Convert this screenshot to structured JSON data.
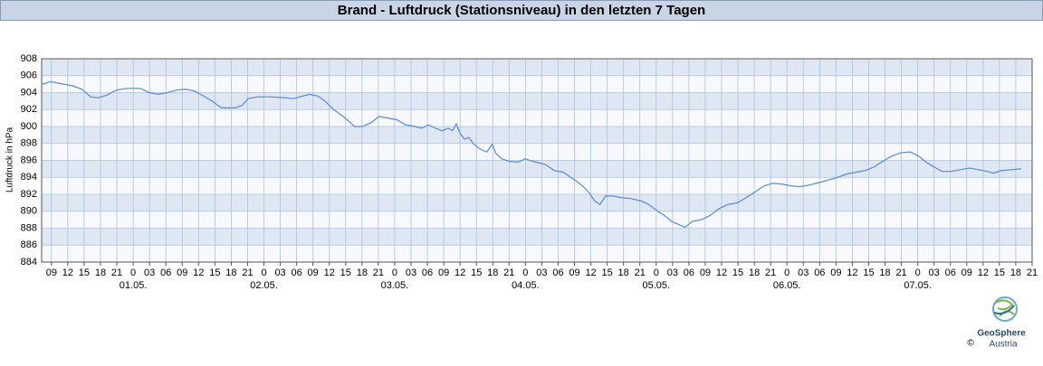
{
  "chart_data": {
    "type": "line",
    "title": "Brand - Luftdruck (Stationsniveau) in den letzten 7 Tagen",
    "y_label": "Luftdruck in hPa",
    "xlim": [
      -16.8,
      165
    ],
    "ylim": [
      884,
      908
    ],
    "yticks": [
      884,
      886,
      888,
      890,
      892,
      894,
      896,
      898,
      900,
      902,
      904,
      906,
      908
    ],
    "xticks": [
      {
        "value": -15,
        "label": "09"
      },
      {
        "value": -12,
        "label": "12"
      },
      {
        "value": -9,
        "label": "15"
      },
      {
        "value": -6,
        "label": "18"
      },
      {
        "value": -3,
        "label": "21"
      },
      {
        "value": 0,
        "label": "0"
      },
      {
        "value": 3,
        "label": "03"
      },
      {
        "value": 6,
        "label": "06"
      },
      {
        "value": 9,
        "label": "09"
      },
      {
        "value": 12,
        "label": "12"
      },
      {
        "value": 15,
        "label": "15"
      },
      {
        "value": 18,
        "label": "18"
      },
      {
        "value": 21,
        "label": "21"
      },
      {
        "value": 24,
        "label": "0"
      },
      {
        "value": 27,
        "label": "03"
      },
      {
        "value": 30,
        "label": "06"
      },
      {
        "value": 33,
        "label": "09"
      },
      {
        "value": 36,
        "label": "12"
      },
      {
        "value": 39,
        "label": "15"
      },
      {
        "value": 42,
        "label": "18"
      },
      {
        "value": 45,
        "label": "21"
      },
      {
        "value": 48,
        "label": "0"
      },
      {
        "value": 51,
        "label": "03"
      },
      {
        "value": 54,
        "label": "06"
      },
      {
        "value": 57,
        "label": "09"
      },
      {
        "value": 60,
        "label": "12"
      },
      {
        "value": 63,
        "label": "15"
      },
      {
        "value": 66,
        "label": "18"
      },
      {
        "value": 69,
        "label": "21"
      },
      {
        "value": 72,
        "label": "0"
      },
      {
        "value": 75,
        "label": "03"
      },
      {
        "value": 78,
        "label": "06"
      },
      {
        "value": 81,
        "label": "09"
      },
      {
        "value": 84,
        "label": "12"
      },
      {
        "value": 87,
        "label": "15"
      },
      {
        "value": 90,
        "label": "18"
      },
      {
        "value": 93,
        "label": "21"
      },
      {
        "value": 96,
        "label": "0"
      },
      {
        "value": 99,
        "label": "03"
      },
      {
        "value": 102,
        "label": "06"
      },
      {
        "value": 105,
        "label": "09"
      },
      {
        "value": 108,
        "label": "12"
      },
      {
        "value": 111,
        "label": "15"
      },
      {
        "value": 114,
        "label": "18"
      },
      {
        "value": 117,
        "label": "21"
      },
      {
        "value": 120,
        "label": "0"
      },
      {
        "value": 123,
        "label": "03"
      },
      {
        "value": 126,
        "label": "06"
      },
      {
        "value": 129,
        "label": "09"
      },
      {
        "value": 132,
        "label": "12"
      },
      {
        "value": 135,
        "label": "15"
      },
      {
        "value": 138,
        "label": "18"
      },
      {
        "value": 141,
        "label": "21"
      },
      {
        "value": 144,
        "label": "0"
      },
      {
        "value": 147,
        "label": "03"
      },
      {
        "value": 150,
        "label": "06"
      },
      {
        "value": 153,
        "label": "09"
      },
      {
        "value": 156,
        "label": "12"
      },
      {
        "value": 159,
        "label": "15"
      },
      {
        "value": 162,
        "label": "18"
      },
      {
        "value": 165,
        "label": "21"
      }
    ],
    "date_labels": [
      {
        "value": 0,
        "label": "01.05."
      },
      {
        "value": 24,
        "label": "02.05."
      },
      {
        "value": 48,
        "label": "03.05."
      },
      {
        "value": 72,
        "label": "04.05."
      },
      {
        "value": 96,
        "label": "05.05."
      },
      {
        "value": 120,
        "label": "06.05."
      },
      {
        "value": 144,
        "label": "07.05."
      }
    ],
    "grid": true,
    "series": [
      {
        "color": "#5b8ad6",
        "x": [
          -16.7,
          -15.2,
          -14.4,
          -12.7,
          -11.1,
          -9.4,
          -7.8,
          -6.4,
          -4.8,
          -3.1,
          -1.2,
          1.3,
          3.0,
          4.6,
          6.3,
          7.9,
          9.6,
          11.2,
          12.9,
          14.5,
          16.2,
          18.7,
          20.0,
          21.1,
          22.8,
          25.3,
          27.8,
          29.4,
          31.1,
          32.4,
          33.9,
          35.2,
          36.8,
          38.5,
          39.8,
          40.6,
          42.1,
          43.8,
          45.1,
          46.7,
          48.4,
          50.0,
          51.7,
          53.0,
          54.2,
          55.5,
          56.7,
          57.8,
          58.6,
          59.3,
          60.0,
          60.8,
          61.6,
          62.4,
          63.3,
          64.1,
          64.9,
          65.9,
          66.6,
          67.6,
          69.0,
          70.7,
          72.0,
          72.8,
          74.0,
          75.7,
          77.3,
          79.0,
          80.3,
          81.5,
          82.8,
          83.9,
          84.7,
          85.7,
          86.7,
          88.0,
          89.7,
          91.3,
          93.3,
          94.6,
          96.3,
          97.5,
          98.8,
          99.9,
          101.3,
          102.6,
          104.2,
          105.9,
          107.5,
          109.2,
          110.9,
          112.5,
          114.2,
          115.8,
          117.4,
          119.1,
          120.7,
          122.4,
          124.1,
          126.0,
          127.7,
          129.3,
          131.0,
          132.6,
          134.3,
          135.9,
          137.6,
          139.2,
          140.9,
          142.6,
          144.2,
          145.5,
          146.8,
          148.5,
          150.1,
          151.8,
          153.5,
          155.1,
          156.8,
          157.9,
          159.3,
          161.1,
          163.0
        ],
        "values": [
          905.0,
          905.3,
          905.2,
          905.0,
          904.8,
          904.4,
          903.5,
          903.4,
          903.7,
          904.3,
          904.5,
          904.5,
          904.0,
          903.8,
          904.0,
          904.3,
          904.4,
          904.2,
          903.6,
          903.0,
          902.2,
          902.2,
          902.5,
          903.3,
          903.5,
          903.5,
          903.4,
          903.3,
          903.6,
          903.8,
          903.6,
          903.0,
          902.0,
          901.2,
          900.5,
          900.0,
          900.0,
          900.5,
          901.2,
          901.0,
          900.8,
          900.2,
          900.0,
          899.8,
          900.2,
          899.8,
          899.5,
          899.8,
          899.5,
          900.3,
          899.2,
          898.5,
          898.7,
          898.0,
          897.5,
          897.2,
          897.0,
          897.9,
          896.8,
          896.2,
          895.9,
          895.8,
          896.2,
          896.0,
          895.8,
          895.5,
          894.8,
          894.6,
          894.0,
          893.5,
          892.8,
          892.0,
          891.2,
          890.8,
          891.8,
          891.8,
          891.6,
          891.5,
          891.2,
          890.8,
          890.0,
          889.5,
          888.8,
          888.5,
          888.1,
          888.8,
          889.0,
          889.5,
          890.3,
          890.8,
          891.0,
          891.6,
          892.3,
          893.0,
          893.3,
          893.2,
          893.0,
          892.9,
          893.1,
          893.4,
          893.7,
          894.0,
          894.4,
          894.6,
          894.8,
          895.2,
          895.9,
          896.5,
          896.9,
          897.0,
          896.5,
          895.8,
          895.3,
          894.7,
          894.7,
          894.9,
          895.1,
          894.9,
          894.7,
          894.5,
          894.8,
          894.9,
          895.0
        ]
      }
    ]
  },
  "logo": {
    "name": "GeoSphere",
    "sub": "Austria",
    "copyright": "©"
  }
}
